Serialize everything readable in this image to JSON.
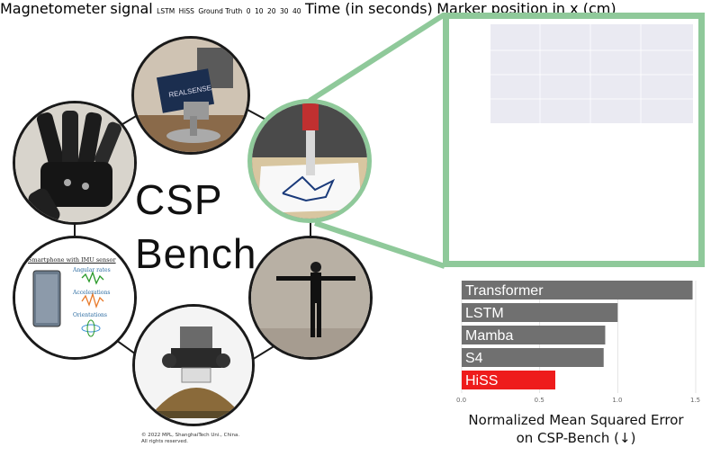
{
  "title": {
    "line1": "CSP",
    "line2": "Bench"
  },
  "copyright": {
    "line1": "© 2022 MPL, ShanghaiTech Uni., China.",
    "line2": "All rights reserved."
  },
  "phone_card": {
    "title": "Smartphone with IMU sensor",
    "labels": [
      "Angular rates",
      "Accelerations",
      "Orientations"
    ]
  },
  "camera_box_text": "REALSENSE",
  "top_plot": {
    "ylabel_line1": "Magnetometer",
    "ylabel_line2": "signal"
  },
  "bottom_plot": {
    "ylabel_line1": "Marker position",
    "ylabel_line2": "in x (cm)",
    "xlabel": "Time (in seconds)",
    "x_ticks": [
      "0",
      "10",
      "20",
      "30",
      "40"
    ],
    "legend": [
      {
        "name": "LSTM",
        "color": "#e8554a"
      },
      {
        "name": "HiSS",
        "color": "#3a8fd6"
      },
      {
        "name": "Ground Truth",
        "color": "#2a9a2a"
      }
    ]
  },
  "chart_data": {
    "type": "bar",
    "orientation": "horizontal",
    "categories": [
      "Transformer",
      "LSTM",
      "Mamba",
      "S4",
      "HiSS"
    ],
    "values": [
      1.48,
      1.0,
      0.92,
      0.91,
      0.6
    ],
    "xlim": [
      0,
      1.5
    ],
    "x_ticks": [
      "0.0",
      "0.5",
      "1.0",
      "1.5"
    ],
    "colors": {
      "default": "#707070",
      "highlight": "#ee1c1c"
    },
    "highlight": "HiSS",
    "xlabel_line1": "Normalized Mean Squared Error",
    "xlabel_line2": "on CSP-Bench (↓)"
  }
}
